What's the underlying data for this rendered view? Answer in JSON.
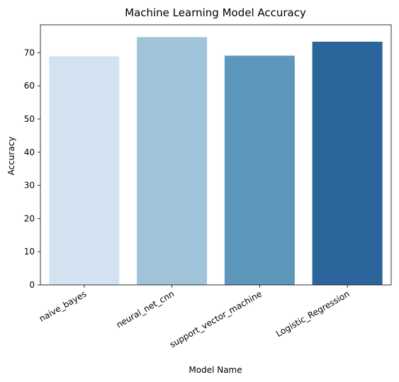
{
  "chart_data": {
    "type": "bar",
    "title": "Machine Learning Model Accuracy",
    "xlabel": "Model Name",
    "ylabel": "Accuracy",
    "categories": [
      "naive_bayes",
      "neural_net_cnn",
      "support_vector_machine",
      "Logistic_Regression"
    ],
    "values": [
      68.9,
      74.7,
      69.1,
      73.3
    ],
    "colors": [
      "#d3e2f0",
      "#9fc4d9",
      "#5d97bc",
      "#2b659b"
    ],
    "yticks": [
      0,
      10,
      20,
      30,
      40,
      50,
      60,
      70
    ],
    "ylim": [
      0,
      78.4
    ],
    "grid": false,
    "legend": "none"
  }
}
